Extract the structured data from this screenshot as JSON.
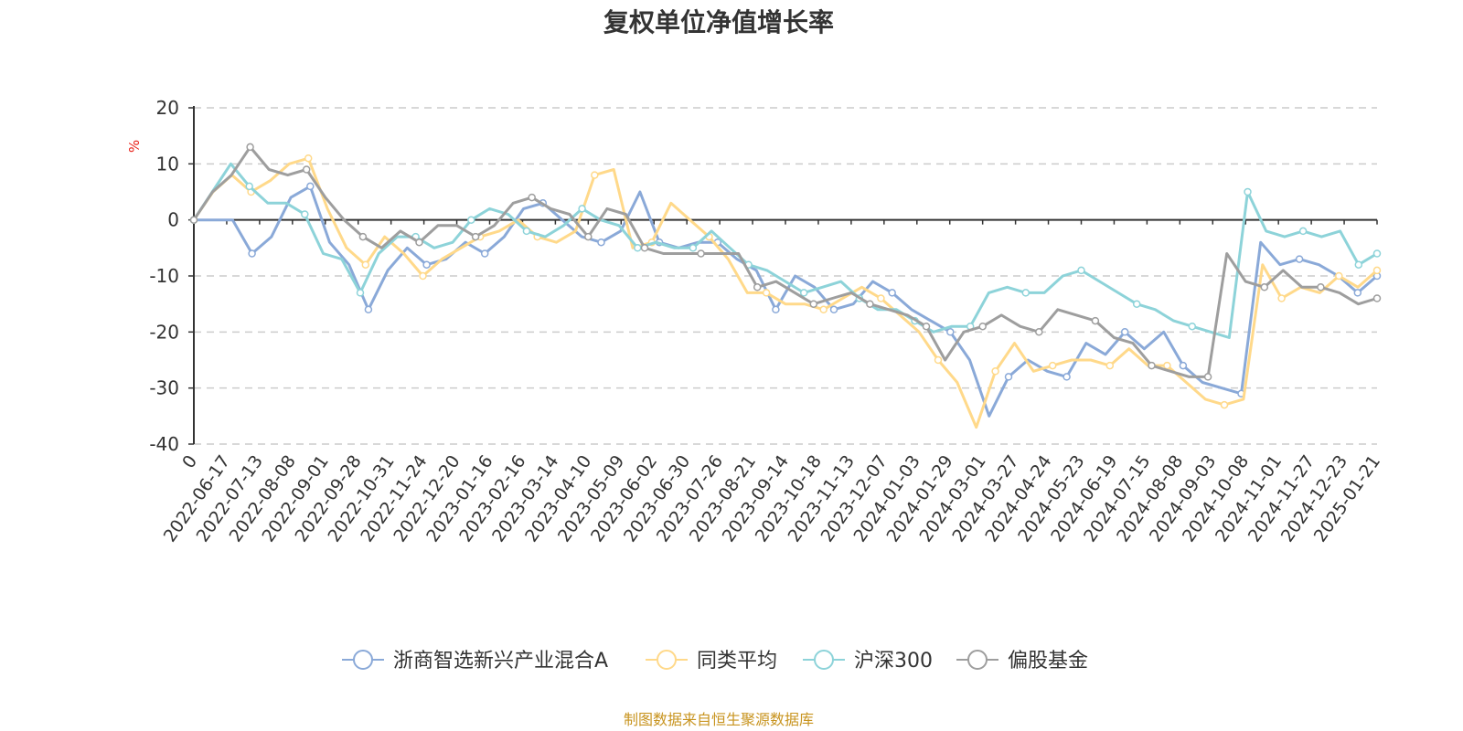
{
  "chart_data": {
    "type": "line",
    "title": "复权单位净值增长率",
    "ylabel": "%",
    "ylim": [
      -40,
      20
    ],
    "yticks": [
      20,
      10,
      0,
      -10,
      -20,
      -30,
      -40
    ],
    "grid": true,
    "legend_position": "bottom-center",
    "x_tick_labels": [
      "0",
      "2022-06-17",
      "2022-07-13",
      "2022-08-08",
      "2022-09-01",
      "2022-09-28",
      "2022-10-31",
      "2022-11-24",
      "2022-12-20",
      "2023-01-16",
      "2023-02-16",
      "2023-03-14",
      "2023-04-10",
      "2023-05-09",
      "2023-06-02",
      "2023-06-30",
      "2023-07-26",
      "2023-08-21",
      "2023-09-14",
      "2023-10-18",
      "2023-11-13",
      "2023-12-07",
      "2024-01-03",
      "2024-01-29",
      "2024-03-01",
      "2024-03-27",
      "2024-04-24",
      "2024-05-23",
      "2024-06-19",
      "2024-07-15",
      "2024-08-08",
      "2024-09-03",
      "2024-10-08",
      "2024-11-01",
      "2024-11-27",
      "2024-12-23",
      "2025-01-21"
    ],
    "series": [
      {
        "name": "浙商智选新兴产业混合A",
        "color": "#8aa9d8",
        "values": [
          0,
          0,
          0,
          -6,
          -3,
          4,
          6,
          -4,
          -8,
          -16,
          -9,
          -5,
          -8,
          -7,
          -4,
          -6,
          -3,
          2,
          3,
          0,
          -3,
          -4,
          -2,
          5,
          -4,
          -5,
          -4,
          -4,
          -7,
          -9,
          -16,
          -10,
          -12,
          -16,
          -15,
          -11,
          -13,
          -16,
          -18,
          -20,
          -25,
          -35,
          -28,
          -25,
          -27,
          -28,
          -22,
          -24,
          -20,
          -23,
          -20,
          -26,
          -29,
          -30,
          -31,
          -4,
          -8,
          -7,
          -8,
          -10,
          -13,
          -10
        ]
      },
      {
        "name": "同类平均",
        "color": "#ffd98a",
        "values": [
          0,
          5,
          8,
          5,
          7,
          10,
          11,
          2,
          -5,
          -8,
          -3,
          -6,
          -10,
          -7,
          -5,
          -3,
          -2,
          0,
          -3,
          -4,
          -2,
          8,
          9,
          -5,
          -4,
          3,
          0,
          -3,
          -7,
          -13,
          -13,
          -15,
          -15,
          -16,
          -14,
          -12,
          -14,
          -17,
          -20,
          -25,
          -29,
          -37,
          -27,
          -22,
          -27,
          -26,
          -25,
          -25,
          -26,
          -23,
          -26,
          -26,
          -29,
          -32,
          -33,
          -32,
          -8,
          -14,
          -12,
          -13,
          -10,
          -12,
          -9
        ]
      },
      {
        "name": "沪深300",
        "color": "#8dd3d9",
        "values": [
          0,
          5,
          10,
          6,
          3,
          3,
          1,
          -6,
          -7,
          -13,
          -6,
          -3,
          -3,
          -5,
          -4,
          0,
          2,
          1,
          -2,
          -3,
          -1,
          2,
          0,
          -1,
          -5,
          -4,
          -5,
          -5,
          -2,
          -5,
          -8,
          -9,
          -11,
          -13,
          -12,
          -11,
          -14,
          -16,
          -16,
          -18,
          -20,
          -19,
          -19,
          -13,
          -12,
          -13,
          -13,
          -10,
          -9,
          -11,
          -13,
          -15,
          -16,
          -18,
          -19,
          -20,
          -21,
          5,
          -2,
          -3,
          -2,
          -3,
          -2,
          -8,
          -6
        ]
      },
      {
        "name": "偏股基金",
        "color": "#9e9e9e",
        "values": [
          0,
          5,
          8,
          13,
          9,
          8,
          9,
          4,
          0,
          -3,
          -5,
          -2,
          -4,
          -1,
          -1,
          -3,
          -1,
          3,
          4,
          2,
          1,
          -3,
          2,
          1,
          -5,
          -6,
          -6,
          -6,
          -6,
          -6,
          -12,
          -11,
          -13,
          -15,
          -14,
          -13,
          -15,
          -16,
          -17,
          -19,
          -25,
          -20,
          -19,
          -17,
          -19,
          -20,
          -16,
          -17,
          -18,
          -21,
          -22,
          -26,
          -27,
          -28,
          -28,
          -6,
          -11,
          -12,
          -9,
          -12,
          -12,
          -13,
          -15,
          -14
        ]
      }
    ]
  },
  "footer": {
    "source_text": "制图数据来自恒生聚源数据库"
  }
}
